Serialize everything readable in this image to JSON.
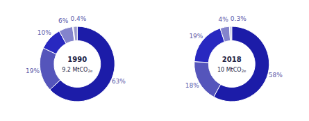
{
  "chart_data": [
    {
      "type": "pie",
      "title": "1990",
      "annotations": [
        "9.2 MtCO",
        "2e"
      ],
      "values": [
        63,
        19,
        10,
        6,
        0.4,
        1.6
      ],
      "value_labels": [
        "63%",
        "19%",
        "10%",
        "6%",
        "0.4%",
        null
      ],
      "colors": [
        "#1c1ca8",
        "#5555bb",
        "#2828c0",
        "#8484cc",
        "#b0b0dd",
        "#9898cc"
      ],
      "data_labels": true
    },
    {
      "type": "pie",
      "title": "2018",
      "annotations": [
        "10 MtCO",
        "2e"
      ],
      "values": [
        58,
        18,
        19,
        4,
        0.3,
        0.7
      ],
      "value_labels": [
        "58%",
        "18%",
        "19%",
        "4%",
        "0.3%",
        null
      ],
      "colors": [
        "#1c1ca8",
        "#5555bb",
        "#2828c0",
        "#8484cc",
        "#b0b0dd",
        "#9898cc"
      ],
      "data_labels": true
    }
  ]
}
